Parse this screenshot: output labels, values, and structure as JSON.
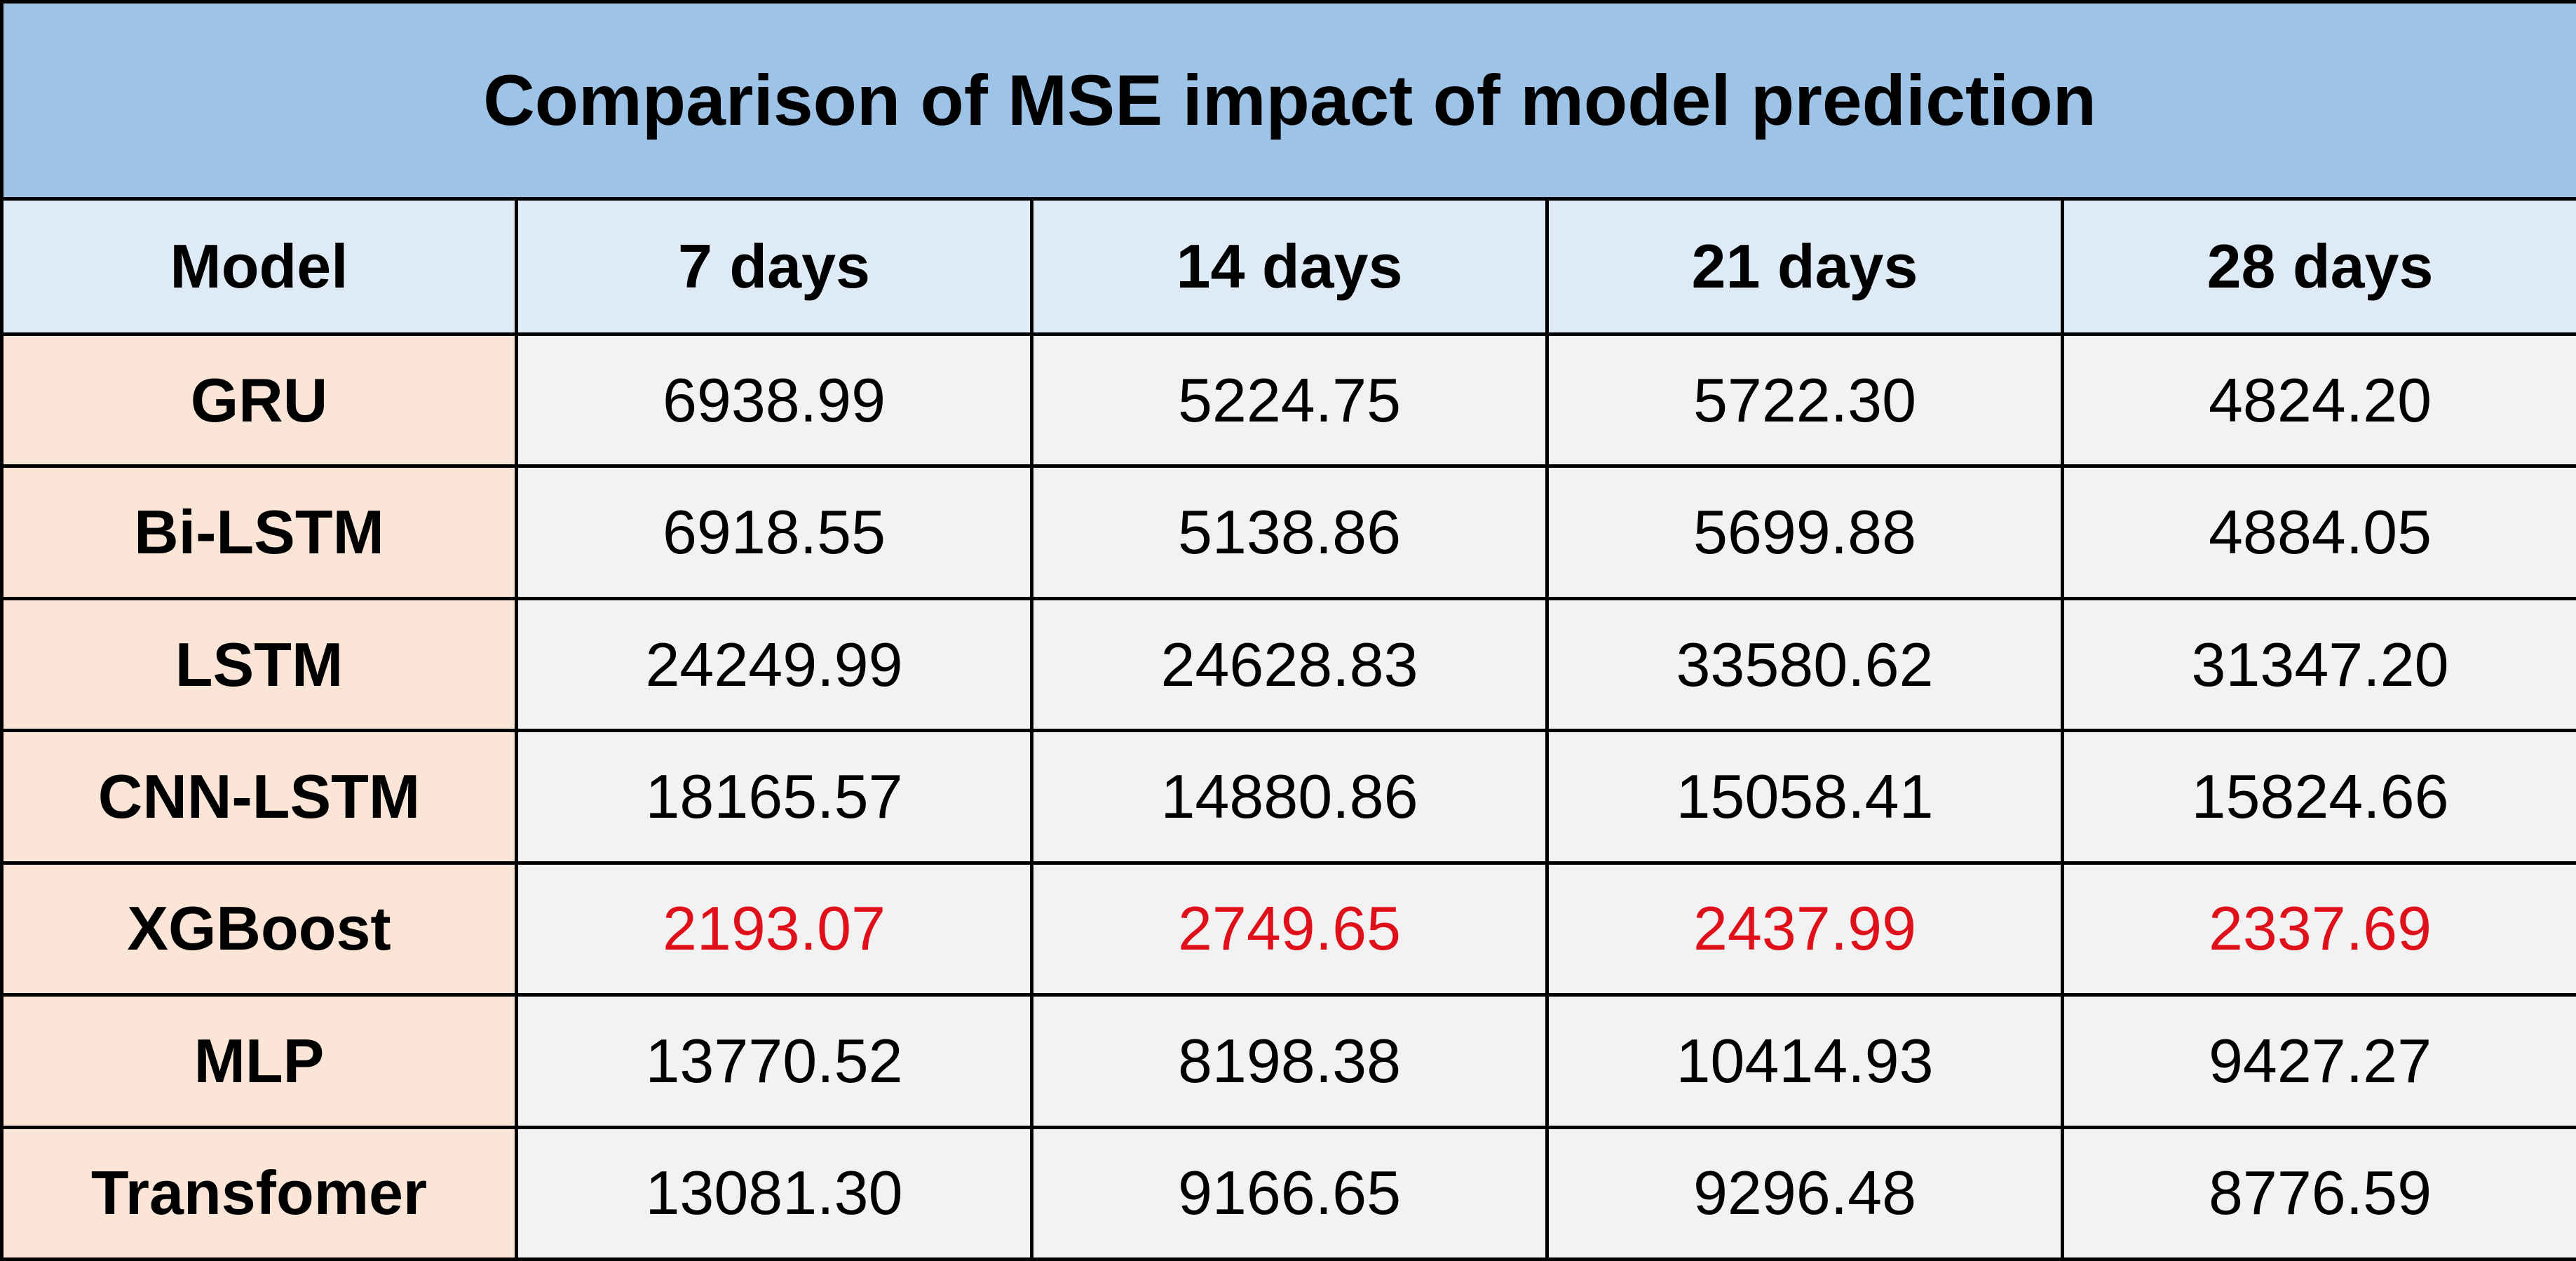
{
  "colors": {
    "title_bg": "#9dc3e6",
    "header_bg": "#deebf7",
    "model_bg": "#fbe5d6",
    "value_bg": "#f2f2f2",
    "highlight_text": "#e0101a",
    "text": "#000000",
    "border": "#000000"
  },
  "chart_data": {
    "type": "table",
    "title": "Comparison of MSE impact of model prediction",
    "columns": [
      "Model",
      "7 days",
      "14 days",
      "21 days",
      "28 days"
    ],
    "rows": [
      {
        "model": "GRU",
        "values": [
          "6938.99",
          "5224.75",
          "5722.30",
          "4824.20"
        ],
        "highlight": false
      },
      {
        "model": "Bi-LSTM",
        "values": [
          "6918.55",
          "5138.86",
          "5699.88",
          "4884.05"
        ],
        "highlight": false
      },
      {
        "model": "LSTM",
        "values": [
          "24249.99",
          "24628.83",
          "33580.62",
          "31347.20"
        ],
        "highlight": false
      },
      {
        "model": "CNN-LSTM",
        "values": [
          "18165.57",
          "14880.86",
          "15058.41",
          "15824.66"
        ],
        "highlight": false
      },
      {
        "model": "XGBoost",
        "values": [
          "2193.07",
          "2749.65",
          "2437.99",
          "2337.69"
        ],
        "highlight": true
      },
      {
        "model": "MLP",
        "values": [
          "13770.52",
          "8198.38",
          "10414.93",
          "9427.27"
        ],
        "highlight": false
      },
      {
        "model": "Transfomer",
        "values": [
          "13081.30",
          "9166.65",
          "9296.48",
          "8776.59"
        ],
        "highlight": false
      }
    ]
  }
}
